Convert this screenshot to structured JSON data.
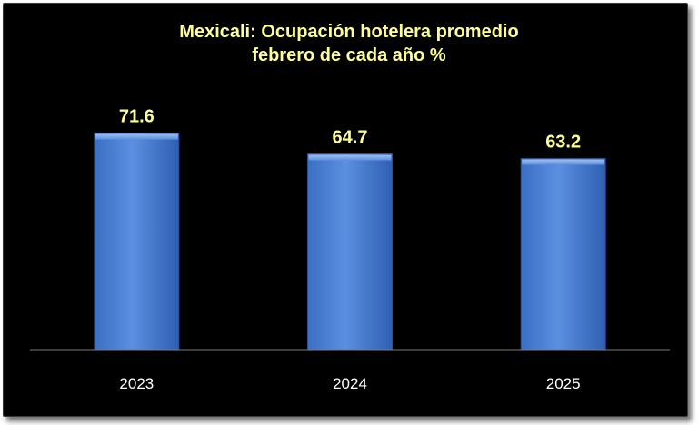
{
  "chart_data": {
    "type": "bar",
    "title_line1": "Mexicali: Ocupación hotelera promedio",
    "title_line2": "febrero de cada año %",
    "categories": [
      "2023",
      "2024",
      "2025"
    ],
    "values": [
      71.6,
      64.7,
      63.2
    ],
    "data_labels": [
      "71.6",
      "64.7",
      "63.2"
    ],
    "ylim": [
      0,
      100
    ],
    "grid": false,
    "legend": "none",
    "bar_color": "#4a7fd4",
    "bar_color_dark": "#2d5aa8",
    "label_color": "#ffff99",
    "tick_color": "#ffffff",
    "background": "#000000"
  }
}
